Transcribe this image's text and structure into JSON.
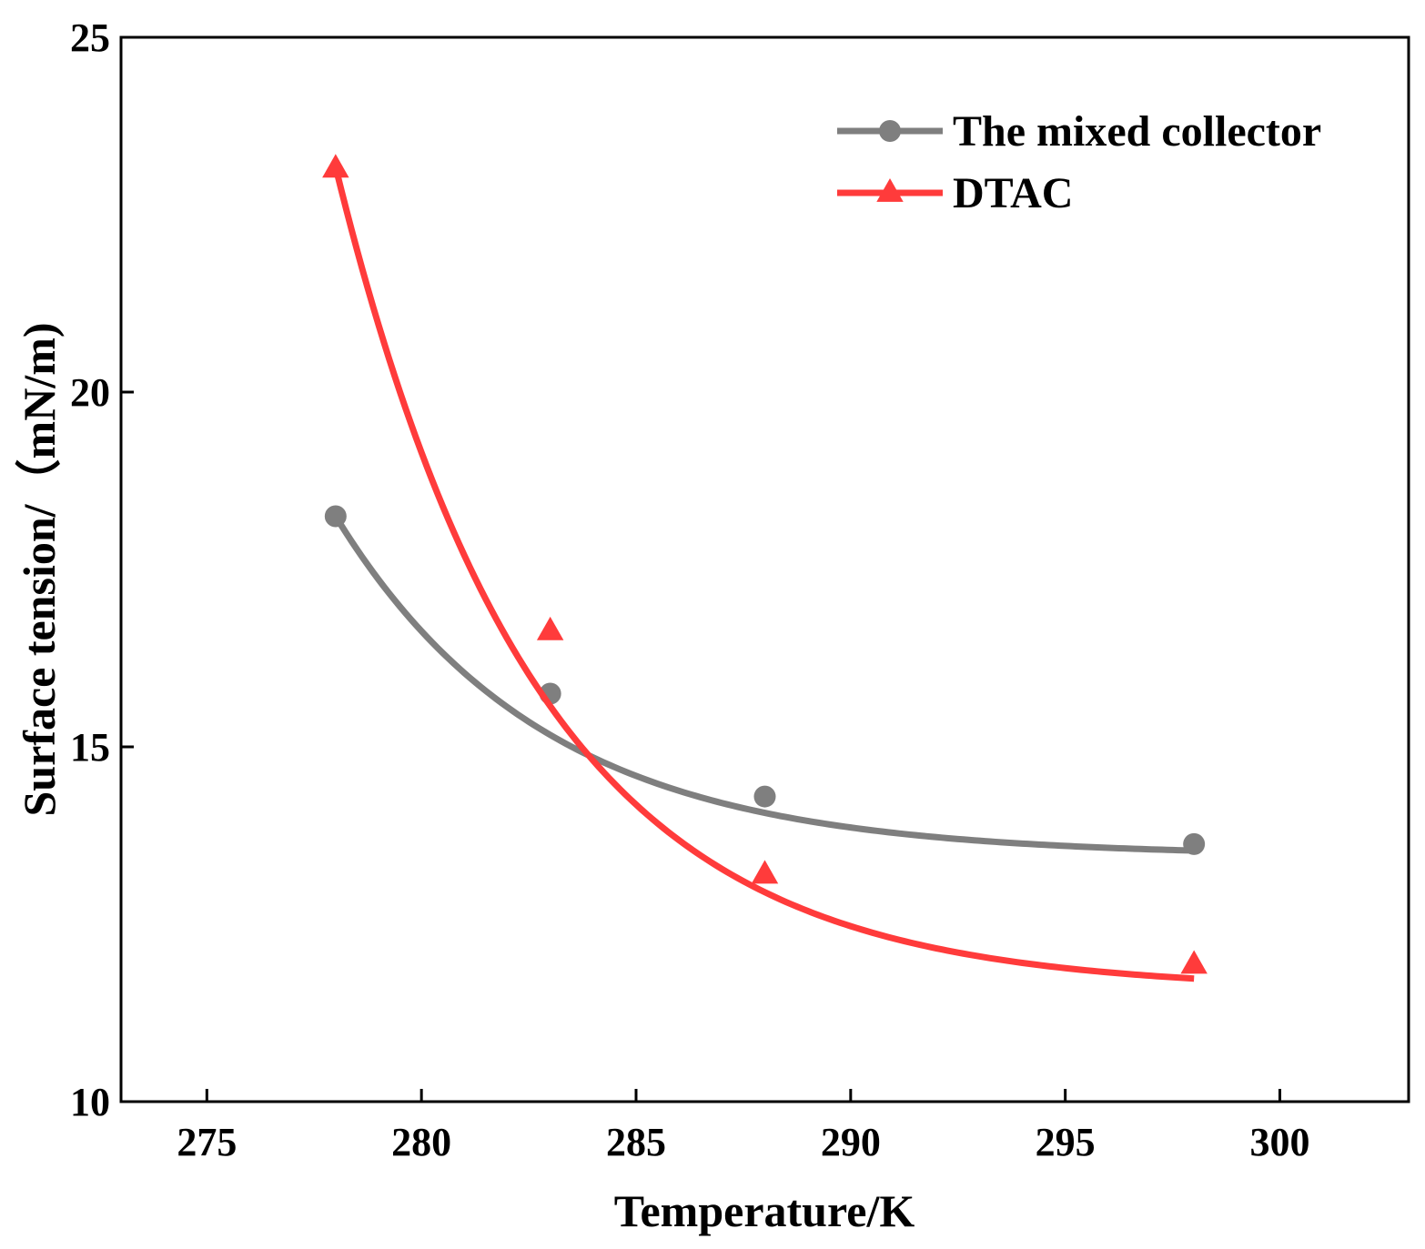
{
  "chart_data": {
    "type": "line",
    "xlabel": "Temperature/K",
    "ylabel": "Surface tension/（mN/m)",
    "xlim": [
      273,
      303
    ],
    "ylim": [
      10,
      25
    ],
    "xticks": [
      275,
      280,
      285,
      290,
      295,
      300
    ],
    "yticks": [
      10,
      15,
      20,
      25
    ],
    "legend_position": "top-right",
    "series": [
      {
        "name": "The mixed collector",
        "marker": "circle",
        "color": "#7f7f7f",
        "x": [
          278,
          283,
          288,
          298
        ],
        "y": [
          18.25,
          15.75,
          14.3,
          13.63
        ],
        "fit": {
          "a": 13.46,
          "b": 4.79,
          "tau": 4.85
        }
      },
      {
        "name": "DTAC",
        "marker": "triangle",
        "color": "#ff3b3b",
        "x": [
          278,
          283,
          288,
          298
        ],
        "y": [
          23.15,
          16.63,
          13.2,
          11.93
        ],
        "fit": {
          "a": 11.57,
          "b": 11.6,
          "tau": 4.7
        }
      }
    ]
  }
}
